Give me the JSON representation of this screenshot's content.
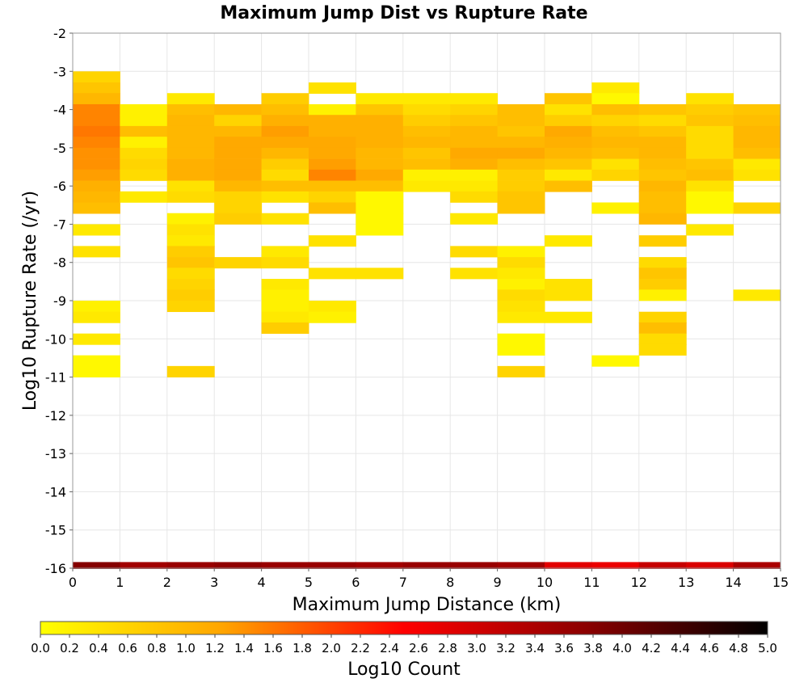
{
  "chart_data": {
    "type": "heatmap",
    "title": "Maximum Jump Dist vs Rupture Rate",
    "xlabel": "Maximum Jump Distance (km)",
    "ylabel": "Log10 Rupture Rate (/yr)",
    "xlim": [
      0,
      15
    ],
    "ylim": [
      -16,
      -2
    ],
    "x_ticks": [
      "0",
      "1",
      "2",
      "3",
      "4",
      "5",
      "6",
      "7",
      "8",
      "9",
      "10",
      "11",
      "12",
      "13",
      "14",
      "15"
    ],
    "y_ticks": [
      "-2",
      "-3",
      "-4",
      "-5",
      "-6",
      "-7",
      "-8",
      "-9",
      "-10",
      "-11",
      "-12",
      "-13",
      "-14",
      "-15",
      "-16"
    ],
    "grid": true,
    "x_bin_width": 1,
    "y_bin_height": 0.286,
    "colorbar": {
      "label": "Log10 Count",
      "range": [
        0,
        5
      ],
      "ticks": [
        "0.0",
        "0.2",
        "0.4",
        "0.6",
        "0.8",
        "1.0",
        "1.2",
        "1.4",
        "1.6",
        "1.8",
        "2.0",
        "2.2",
        "2.4",
        "2.6",
        "2.8",
        "3.0",
        "3.2",
        "3.4",
        "3.6",
        "3.8",
        "4.0",
        "4.2",
        "4.4",
        "4.6",
        "4.8",
        "5.0"
      ],
      "colors": [
        "#ffff00",
        "#ffa500",
        "#ff0000",
        "#8b0000",
        "#000000"
      ]
    },
    "columns": [
      {
        "x": 0,
        "bottom_value": 3.8,
        "cells": [
          [
            -3.0,
            0.6
          ],
          [
            -3.29,
            0.8
          ],
          [
            -3.57,
            1.0
          ],
          [
            -3.86,
            1.5
          ],
          [
            -4.14,
            1.5
          ],
          [
            -4.43,
            1.6
          ],
          [
            -4.71,
            1.5
          ],
          [
            -5.0,
            1.4
          ],
          [
            -5.29,
            1.4
          ],
          [
            -5.57,
            1.3
          ],
          [
            -5.86,
            1.1
          ],
          [
            -6.14,
            1.0
          ],
          [
            -6.43,
            0.9
          ],
          [
            -7.0,
            0.3
          ],
          [
            -7.57,
            0.4
          ],
          [
            -9.0,
            0.2
          ],
          [
            -9.29,
            0.3
          ],
          [
            -9.86,
            0.3
          ],
          [
            -10.43,
            0.1
          ],
          [
            -10.71,
            0.1
          ]
        ]
      },
      {
        "x": 1,
        "bottom_value": 3.5,
        "cells": [
          [
            -3.86,
            0.2
          ],
          [
            -4.14,
            0.2
          ],
          [
            -4.43,
            0.9
          ],
          [
            -4.71,
            0.2
          ],
          [
            -5.0,
            0.5
          ],
          [
            -5.29,
            0.6
          ],
          [
            -5.57,
            0.5
          ],
          [
            -6.14,
            0.3
          ]
        ]
      },
      {
        "x": 2,
        "bottom_value": 3.6,
        "cells": [
          [
            -3.57,
            0.3
          ],
          [
            -3.86,
            0.9
          ],
          [
            -4.14,
            1.0
          ],
          [
            -4.43,
            1.0
          ],
          [
            -4.71,
            1.0
          ],
          [
            -5.0,
            1.0
          ],
          [
            -5.29,
            1.1
          ],
          [
            -5.57,
            1.1
          ],
          [
            -5.86,
            0.4
          ],
          [
            -6.14,
            0.5
          ],
          [
            -6.71,
            0.2
          ],
          [
            -7.0,
            0.4
          ],
          [
            -7.29,
            0.3
          ],
          [
            -7.57,
            0.7
          ],
          [
            -7.86,
            0.8
          ],
          [
            -8.14,
            0.5
          ],
          [
            -8.43,
            0.6
          ],
          [
            -8.71,
            0.7
          ],
          [
            -9.0,
            0.6
          ],
          [
            -10.71,
            0.6
          ]
        ]
      },
      {
        "x": 3,
        "bottom_value": 3.7,
        "cells": [
          [
            -3.86,
            1.0
          ],
          [
            -4.14,
            0.6
          ],
          [
            -4.43,
            1.0
          ],
          [
            -4.71,
            1.2
          ],
          [
            -5.0,
            1.2
          ],
          [
            -5.29,
            1.2
          ],
          [
            -5.57,
            1.2
          ],
          [
            -5.86,
            1.0
          ],
          [
            -6.14,
            0.6
          ],
          [
            -6.43,
            0.6
          ],
          [
            -6.71,
            0.7
          ],
          [
            -7.86,
            0.6
          ]
        ]
      },
      {
        "x": 4,
        "bottom_value": 3.6,
        "cells": [
          [
            -3.57,
            0.7
          ],
          [
            -3.86,
            0.9
          ],
          [
            -4.14,
            1.1
          ],
          [
            -4.43,
            1.3
          ],
          [
            -4.71,
            1.2
          ],
          [
            -5.0,
            1.0
          ],
          [
            -5.29,
            0.7
          ],
          [
            -5.57,
            0.5
          ],
          [
            -5.86,
            0.9
          ],
          [
            -6.14,
            0.4
          ],
          [
            -6.71,
            0.4
          ],
          [
            -7.57,
            0.3
          ],
          [
            -7.86,
            0.5
          ],
          [
            -8.43,
            0.3
          ],
          [
            -8.71,
            0.2
          ],
          [
            -9.0,
            0.2
          ],
          [
            -9.29,
            0.3
          ],
          [
            -9.57,
            0.7
          ]
        ]
      },
      {
        "x": 5,
        "bottom_value": 3.6,
        "cells": [
          [
            -3.29,
            0.4
          ],
          [
            -3.86,
            0.2
          ],
          [
            -4.14,
            1.1
          ],
          [
            -4.43,
            1.1
          ],
          [
            -4.71,
            1.2
          ],
          [
            -5.0,
            1.2
          ],
          [
            -5.29,
            1.3
          ],
          [
            -5.57,
            1.5
          ],
          [
            -5.86,
            0.9
          ],
          [
            -6.14,
            0.6
          ],
          [
            -6.43,
            0.9
          ],
          [
            -7.29,
            0.4
          ],
          [
            -8.14,
            0.4
          ],
          [
            -9.0,
            0.3
          ],
          [
            -9.29,
            0.2
          ]
        ]
      },
      {
        "x": 6,
        "bottom_value": 3.5,
        "cells": [
          [
            -3.57,
            0.3
          ],
          [
            -3.86,
            0.8
          ],
          [
            -4.14,
            1.1
          ],
          [
            -4.43,
            1.1
          ],
          [
            -4.71,
            1.1
          ],
          [
            -5.0,
            1.0
          ],
          [
            -5.29,
            1.0
          ],
          [
            -5.57,
            1.2
          ],
          [
            -5.86,
            0.9
          ],
          [
            -6.14,
            0.1
          ],
          [
            -6.43,
            0.1
          ],
          [
            -6.71,
            0.1
          ],
          [
            -7.0,
            0.1
          ],
          [
            -8.14,
            0.4
          ]
        ]
      },
      {
        "x": 7,
        "bottom_value": 3.6,
        "cells": [
          [
            -3.57,
            0.3
          ],
          [
            -3.86,
            0.5
          ],
          [
            -4.14,
            0.7
          ],
          [
            -4.43,
            0.9
          ],
          [
            -4.71,
            1.0
          ],
          [
            -5.0,
            0.8
          ],
          [
            -5.29,
            0.9
          ],
          [
            -5.57,
            0.2
          ],
          [
            -5.86,
            0.3
          ]
        ]
      },
      {
        "x": 8,
        "bottom_value": 3.6,
        "cells": [
          [
            -3.57,
            0.3
          ],
          [
            -3.86,
            0.6
          ],
          [
            -4.14,
            0.8
          ],
          [
            -4.43,
            1.0
          ],
          [
            -4.71,
            1.0
          ],
          [
            -5.0,
            1.2
          ],
          [
            -5.29,
            1.1
          ],
          [
            -5.57,
            0.2
          ],
          [
            -5.86,
            0.3
          ],
          [
            -6.14,
            0.5
          ],
          [
            -6.71,
            0.3
          ],
          [
            -7.57,
            0.5
          ],
          [
            -8.14,
            0.4
          ]
        ]
      },
      {
        "x": 9,
        "bottom_value": 3.5,
        "cells": [
          [
            -3.86,
            0.9
          ],
          [
            -4.14,
            0.9
          ],
          [
            -4.43,
            0.8
          ],
          [
            -4.71,
            1.0
          ],
          [
            -5.0,
            1.2
          ],
          [
            -5.29,
            0.9
          ],
          [
            -5.57,
            0.7
          ],
          [
            -5.86,
            0.7
          ],
          [
            -6.14,
            0.8
          ],
          [
            -6.43,
            0.8
          ],
          [
            -7.57,
            0.2
          ],
          [
            -7.86,
            0.5
          ],
          [
            -8.14,
            0.3
          ],
          [
            -8.43,
            0.2
          ],
          [
            -8.71,
            0.5
          ],
          [
            -9.0,
            0.4
          ],
          [
            -9.29,
            0.3
          ],
          [
            -9.86,
            0.1
          ],
          [
            -10.14,
            0.1
          ],
          [
            -10.71,
            0.6
          ]
        ]
      },
      {
        "x": 10,
        "bottom_value": 2.8,
        "cells": [
          [
            -3.57,
            0.8
          ],
          [
            -3.86,
            0.4
          ],
          [
            -4.14,
            0.7
          ],
          [
            -4.43,
            1.2
          ],
          [
            -4.71,
            1.1
          ],
          [
            -5.0,
            1.0
          ],
          [
            -5.29,
            0.8
          ],
          [
            -5.57,
            0.3
          ],
          [
            -5.86,
            0.9
          ],
          [
            -7.29,
            0.3
          ],
          [
            -8.43,
            0.4
          ],
          [
            -8.71,
            0.4
          ],
          [
            -9.29,
            0.3
          ]
        ]
      },
      {
        "x": 11,
        "bottom_value": 2.7,
        "cells": [
          [
            -3.29,
            0.3
          ],
          [
            -3.57,
            0.1
          ],
          [
            -3.86,
            0.9
          ],
          [
            -4.14,
            0.6
          ],
          [
            -4.43,
            0.9
          ],
          [
            -4.71,
            1.0
          ],
          [
            -5.0,
            0.9
          ],
          [
            -5.29,
            0.4
          ],
          [
            -5.57,
            0.6
          ],
          [
            -6.43,
            0.2
          ],
          [
            -10.43,
            0.1
          ]
        ]
      },
      {
        "x": 12,
        "bottom_value": 3.1,
        "cells": [
          [
            -3.86,
            0.8
          ],
          [
            -4.14,
            0.5
          ],
          [
            -4.43,
            0.8
          ],
          [
            -4.71,
            1.0
          ],
          [
            -5.0,
            1.0
          ],
          [
            -5.29,
            0.9
          ],
          [
            -5.57,
            0.8
          ],
          [
            -5.86,
            1.0
          ],
          [
            -6.14,
            0.9
          ],
          [
            -6.43,
            0.9
          ],
          [
            -6.71,
            1.0
          ],
          [
            -7.29,
            0.7
          ],
          [
            -7.86,
            0.5
          ],
          [
            -8.14,
            0.8
          ],
          [
            -8.43,
            0.7
          ],
          [
            -8.71,
            0.2
          ],
          [
            -9.29,
            0.6
          ],
          [
            -9.57,
            0.9
          ],
          [
            -9.86,
            0.5
          ],
          [
            -10.14,
            0.5
          ]
        ]
      },
      {
        "x": 13,
        "bottom_value": 2.9,
        "cells": [
          [
            -3.57,
            0.4
          ],
          [
            -3.86,
            0.7
          ],
          [
            -4.14,
            0.8
          ],
          [
            -4.43,
            0.5
          ],
          [
            -4.71,
            0.5
          ],
          [
            -5.0,
            0.5
          ],
          [
            -5.29,
            0.8
          ],
          [
            -5.57,
            0.9
          ],
          [
            -5.86,
            0.4
          ],
          [
            -6.14,
            0.1
          ],
          [
            -6.43,
            0.1
          ],
          [
            -7.0,
            0.3
          ]
        ]
      },
      {
        "x": 14,
        "bottom_value": 3.4,
        "cells": [
          [
            -3.86,
            0.8
          ],
          [
            -4.14,
            0.9
          ],
          [
            -4.43,
            1.0
          ],
          [
            -4.71,
            1.0
          ],
          [
            -5.0,
            0.9
          ],
          [
            -5.29,
            0.3
          ],
          [
            -5.57,
            0.4
          ],
          [
            -6.43,
            0.6
          ],
          [
            -8.71,
            0.3
          ]
        ]
      }
    ]
  }
}
